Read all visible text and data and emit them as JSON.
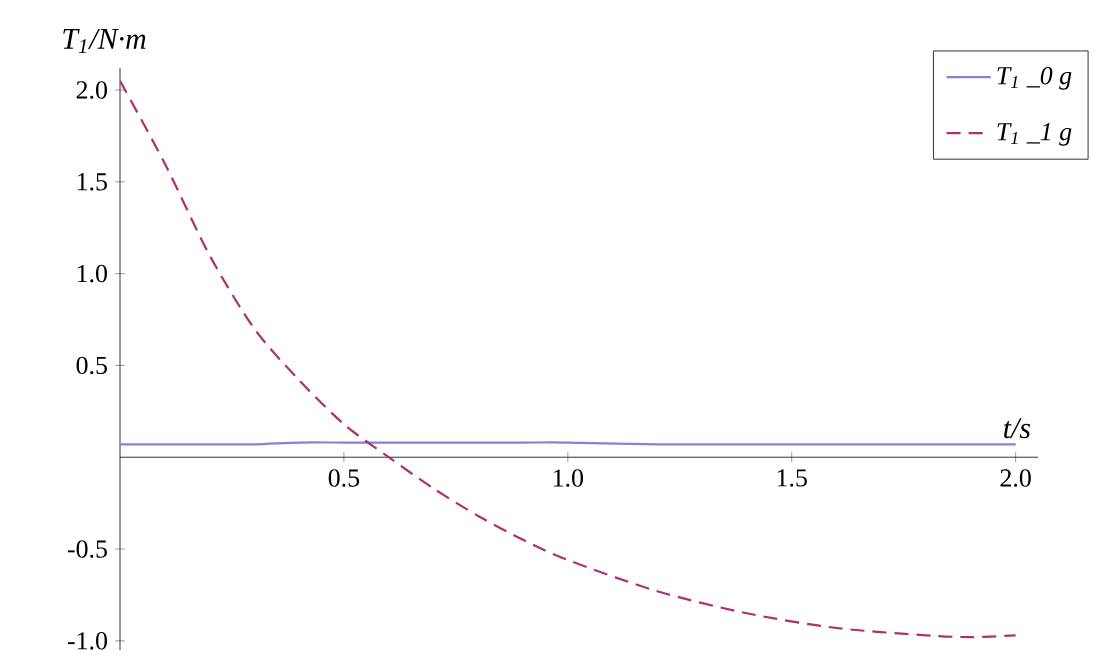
{
  "chart_data": {
    "type": "line",
    "xlabel": "t/s",
    "ylabel": "T$_{1}$/N·m",
    "xlim": [
      0,
      2.05
    ],
    "ylim": [
      -1.05,
      2.12
    ],
    "xticks": [
      {
        "value": 0.5,
        "label": "0.5"
      },
      {
        "value": 1,
        "label": "1.0"
      },
      {
        "value": 1.5,
        "label": "1.5"
      },
      {
        "value": 2,
        "label": "2.0"
      }
    ],
    "yticks": [
      {
        "value": -1,
        "label": "-1.0"
      },
      {
        "value": -0.5,
        "label": "-0.5"
      },
      {
        "value": 0.5,
        "label": "0.5"
      },
      {
        "value": 1,
        "label": "1.0"
      },
      {
        "value": 1.5,
        "label": "1.5"
      },
      {
        "value": 2,
        "label": "2.0"
      }
    ],
    "x": [
      0,
      0.1,
      0.2,
      0.3,
      0.4,
      0.5,
      0.6,
      0.7,
      0.8,
      0.9,
      1.0,
      1.2,
      1.4,
      1.6,
      1.8,
      1.9,
      2.0
    ],
    "series": [
      {
        "name": "T$_{1}$ _0 g",
        "color": "#8484d0",
        "line_style": "solid",
        "values": [
          0.07,
          0.07,
          0.07,
          0.07,
          0.08,
          0.08,
          0.08,
          0.08,
          0.08,
          0.08,
          0.08,
          0.07,
          0.07,
          0.07,
          0.07,
          0.07,
          0.07
        ]
      },
      {
        "name": "T$_{1}$ _1 g",
        "color": "#b0306a",
        "line_style": "dashed",
        "values": [
          2.05,
          1.6,
          1.1,
          0.7,
          0.42,
          0.18,
          0.0,
          -0.17,
          -0.32,
          -0.45,
          -0.56,
          -0.73,
          -0.85,
          -0.93,
          -0.97,
          -0.98,
          -0.97
        ]
      }
    ],
    "legend": "top right",
    "grid": false,
    "marker": "none"
  }
}
